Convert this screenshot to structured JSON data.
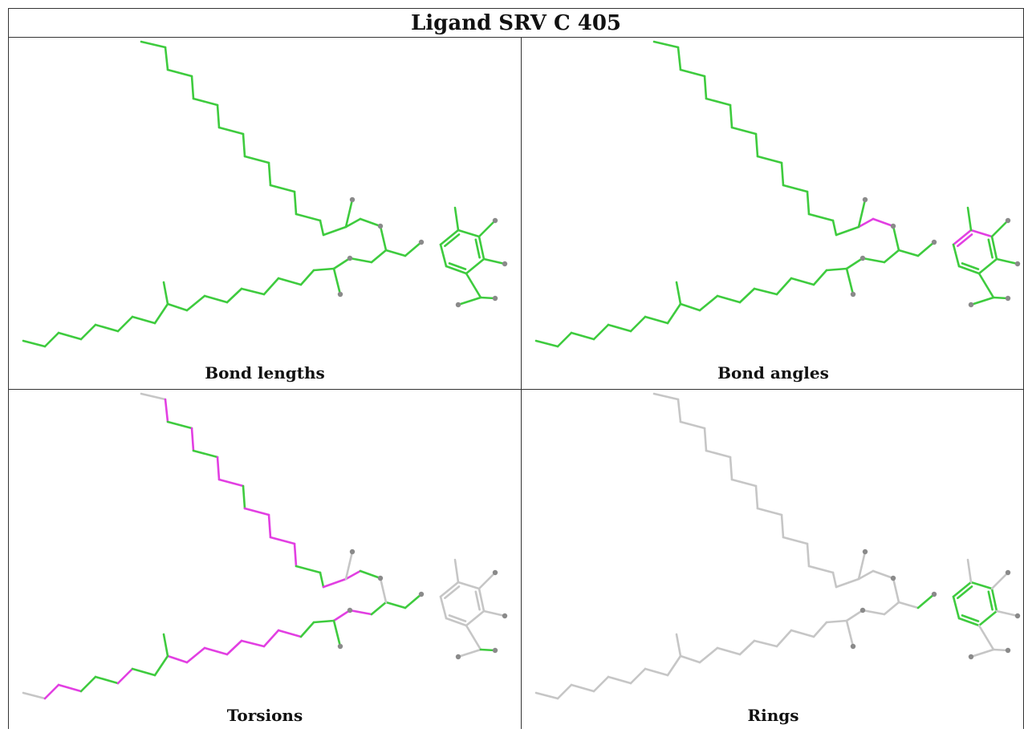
{
  "title": "Ligand SRV C 405",
  "colors": {
    "ok": "#3ecb3e",
    "outlier": "#e23fe2",
    "none": "#c6c6c6",
    "atom": "#8a8a8a"
  },
  "panels": [
    {
      "label": "Bond lengths",
      "chain1": [
        "ok",
        "ok",
        "ok",
        "ok",
        "ok",
        "ok",
        "ok",
        "ok",
        "ok",
        "ok",
        "ok",
        "ok",
        "ok",
        "ok",
        "ok",
        "ok",
        "ok"
      ],
      "chain2": [
        "ok",
        "ok",
        "ok",
        "ok",
        "ok",
        "ok",
        "ok",
        "ok",
        "ok",
        "ok",
        "ok",
        "ok",
        "ok",
        "ok",
        "ok",
        "ok",
        "ok",
        "ok",
        "ok",
        "ok",
        "ok"
      ],
      "ring": [
        "ok",
        "ok",
        "ok",
        "ok",
        "ok",
        "ok"
      ],
      "subs": [
        "ok",
        "ok",
        "ok",
        "ok",
        "ok",
        "ok",
        "ok",
        "ok",
        "ok"
      ]
    },
    {
      "label": "Bond angles",
      "chain1": [
        "ok",
        "ok",
        "ok",
        "ok",
        "ok",
        "ok",
        "ok",
        "ok",
        "ok",
        "ok",
        "ok",
        "ok",
        "ok",
        "ok",
        "ok",
        "outlier",
        "outlier"
      ],
      "chain2": [
        "ok",
        "ok",
        "ok",
        "ok",
        "ok",
        "ok",
        "ok",
        "ok",
        "ok",
        "ok",
        "ok",
        "ok",
        "ok",
        "ok",
        "ok",
        "ok",
        "ok",
        "ok",
        "ok",
        "ok",
        "ok"
      ],
      "ring": [
        "outlier",
        "outlier",
        "ok",
        "ok",
        "ok",
        "ok"
      ],
      "subs": [
        "ok",
        "ok",
        "ok",
        "ok",
        "ok",
        "ok",
        "ok",
        "ok",
        "ok"
      ]
    },
    {
      "label": "Torsions",
      "chain1": [
        "none",
        "outlier",
        "ok",
        "outlier",
        "ok",
        "outlier",
        "outlier",
        "ok",
        "outlier",
        "outlier",
        "outlier",
        "outlier",
        "ok",
        "ok",
        "outlier",
        "outlier",
        "ok"
      ],
      "chain2": [
        "none",
        "outlier",
        "outlier",
        "ok",
        "ok",
        "outlier",
        "ok",
        "ok",
        "outlier",
        "outlier",
        "outlier",
        "outlier",
        "outlier",
        "outlier",
        "outlier",
        "ok",
        "ok",
        "outlier",
        "outlier",
        "ok",
        "ok"
      ],
      "ring": [
        "none",
        "none",
        "none",
        "none",
        "none",
        "none"
      ],
      "subs": [
        "none",
        "none",
        "ok",
        "ok",
        "none",
        "none",
        "none",
        "none",
        "ok"
      ]
    },
    {
      "label": "Rings",
      "chain1": [
        "none",
        "none",
        "none",
        "none",
        "none",
        "none",
        "none",
        "none",
        "none",
        "none",
        "none",
        "none",
        "none",
        "none",
        "none",
        "none",
        "none"
      ],
      "chain2": [
        "none",
        "none",
        "none",
        "none",
        "none",
        "none",
        "none",
        "none",
        "none",
        "none",
        "none",
        "none",
        "none",
        "none",
        "none",
        "none",
        "none",
        "none",
        "none",
        "none",
        "none"
      ],
      "ring": [
        "ok",
        "ok",
        "ok",
        "ok",
        "ok",
        "ok"
      ],
      "subs": [
        "none",
        "none",
        "none",
        "none",
        "none",
        "none",
        "none",
        "none",
        "none"
      ]
    }
  ]
}
